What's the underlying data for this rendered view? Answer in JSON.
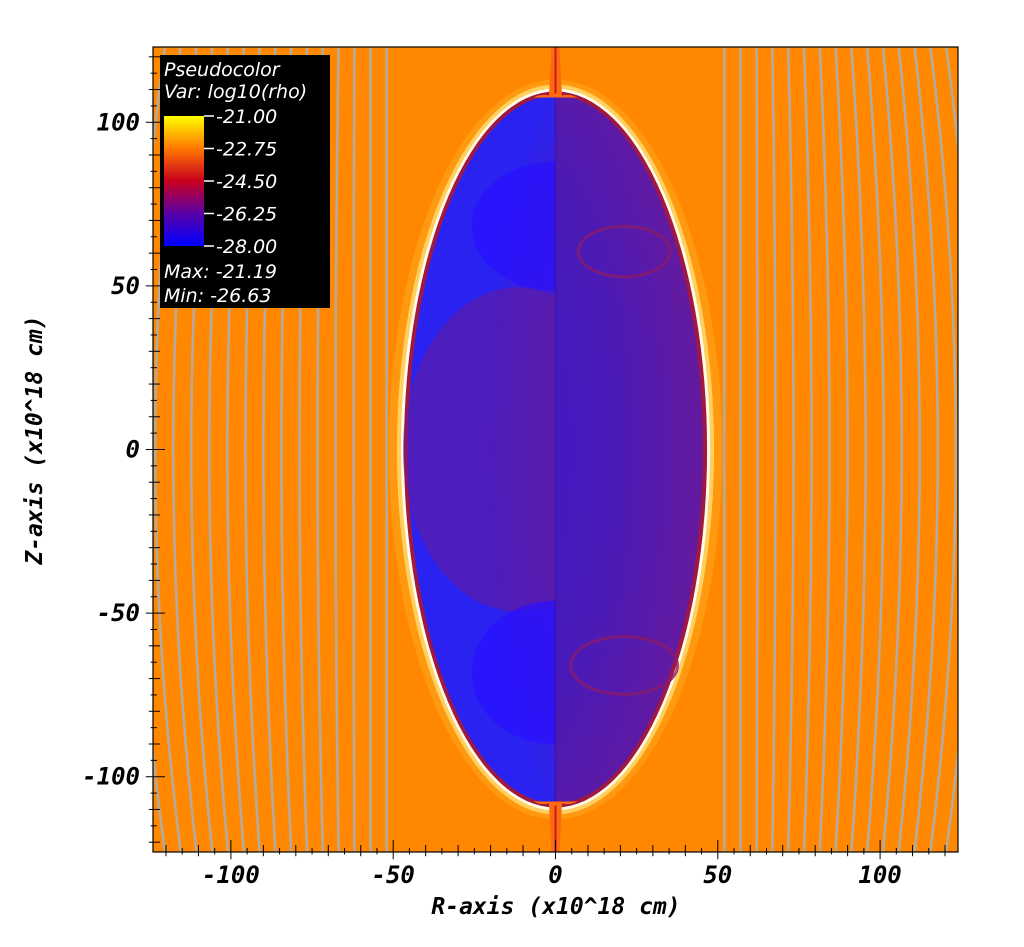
{
  "chart_data": {
    "type": "heatmap",
    "plot_kind": "Pseudocolor",
    "xlabel": "R-axis (x10^18 cm)",
    "ylabel": "Z-axis (x10^18 cm)",
    "xlim": [
      -124,
      124
    ],
    "ylim": [
      -123,
      123
    ],
    "x_ticks": [
      -100,
      -50,
      0,
      50,
      100
    ],
    "x_tick_labels": [
      "-100",
      "-50",
      "0",
      "50",
      "100"
    ],
    "y_ticks": [
      100,
      50,
      0,
      -50,
      -100
    ],
    "y_tick_labels": [
      "100",
      "50",
      "0",
      "-50",
      "-100"
    ],
    "legend": {
      "title": "Pseudocolor",
      "variable": "Var: log10(rho)",
      "scale_values": [
        -21.0,
        -22.75,
        -24.5,
        -26.25,
        -28.0
      ],
      "scale_labels": [
        "-21.00",
        "-22.75",
        "-24.50",
        "-26.25",
        "-28.00"
      ],
      "max_label": "Max: -21.19",
      "min_label": "Min: -26.63",
      "max_value": -21.19,
      "min_value": -26.63,
      "placement": "top-left"
    },
    "colormap": [
      "#0000ff",
      "#5a00a8",
      "#c8001e",
      "#ff7800",
      "#ffff00"
    ],
    "ambient_log10_rho": -22.6,
    "bubble": {
      "shape": "prolate ellipse centered on axis",
      "half_width_r": 47,
      "half_height_z": 110,
      "interior_log10_rho_range": [
        -26.6,
        -25.0
      ]
    },
    "jet": {
      "z_extent": 123,
      "half_width_r": 2
    },
    "background_arc_spacing_r": 5,
    "colors": {
      "ambient": "#ff8800",
      "arc": "#a9b0b8",
      "shell": "#ffd060",
      "cavity": "#2222ff",
      "core": "#6a1a96",
      "legend_bg": "#000000"
    }
  }
}
